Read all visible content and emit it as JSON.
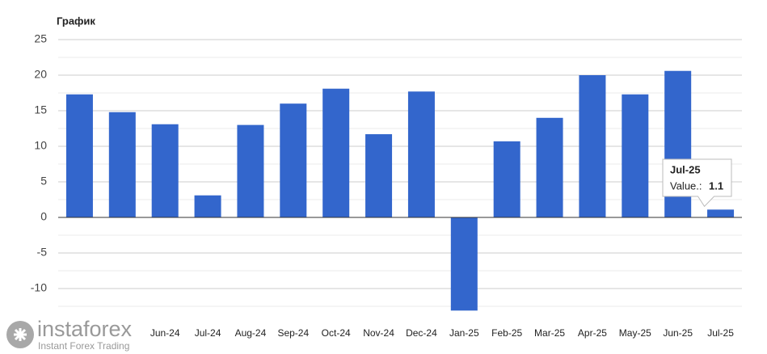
{
  "chart_data": {
    "type": "bar",
    "title": "График",
    "categories": [
      null,
      null,
      "Jun-24",
      "Jul-24",
      "Aug-24",
      "Sep-24",
      "Oct-24",
      "Nov-24",
      "Dec-24",
      "Jan-25",
      "Feb-25",
      "Mar-25",
      "Apr-25",
      "May-25",
      "Jun-25",
      "Jul-25"
    ],
    "values": [
      17.3,
      14.8,
      13.1,
      3.1,
      13.0,
      16.0,
      18.1,
      11.7,
      17.7,
      -13.1,
      10.7,
      14.0,
      20.0,
      17.3,
      20.6,
      1.1
    ],
    "color": "#3366cc",
    "ylim": [
      -12.5,
      25
    ],
    "yticks": [
      25,
      20,
      15,
      10,
      5,
      0,
      -5,
      -10
    ],
    "minor_yticks": [
      22.5,
      17.5,
      12.5,
      7.5,
      2.5,
      -2.5,
      -7.5,
      -12.5
    ],
    "grid": true,
    "tooltip": {
      "index": 15,
      "label": "Value.:"
    },
    "watermark": {
      "brand": "instaforex",
      "tagline": "Instant Forex Trading"
    }
  }
}
